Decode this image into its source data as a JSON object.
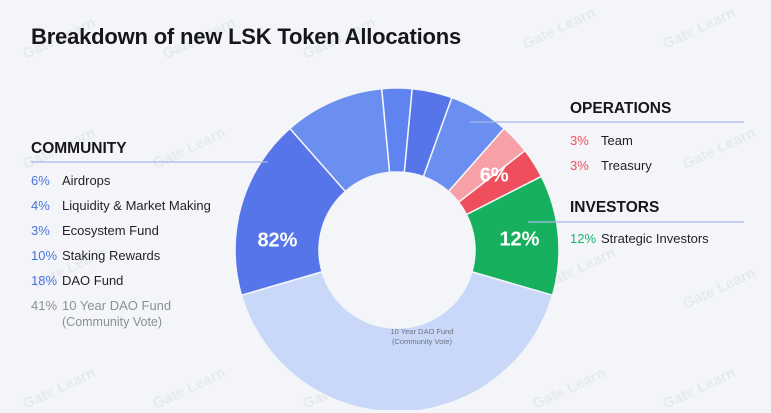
{
  "title": "Breakdown of new LSK Token Allocations",
  "watermark_text": "Gate Learn",
  "colors": {
    "community": "#5f84ef",
    "community_dark": "#5575e9",
    "community_mid": "#6a8ff0",
    "community_light": "#c9d8f8",
    "operations": "#ef4f5d",
    "operations_light": "#f7a0a8",
    "investors": "#17b05e",
    "leader_line": "#a9b8e5"
  },
  "chart_data": {
    "type": "pie",
    "donut": true,
    "title": "Breakdown of new LSK Token Allocations",
    "groups": [
      {
        "name": "COMMUNITY",
        "value": 82,
        "label": "82%"
      },
      {
        "name": "OPERATIONS",
        "value": 6,
        "label": "6%"
      },
      {
        "name": "INVESTORS",
        "value": 12,
        "label": "12%"
      }
    ],
    "slices": [
      {
        "group": "COMMUNITY",
        "name": "Airdrops",
        "value": 6
      },
      {
        "group": "COMMUNITY",
        "name": "Liquidity & Market Making",
        "value": 4
      },
      {
        "group": "COMMUNITY",
        "name": "Ecosystem Fund",
        "value": 3
      },
      {
        "group": "COMMUNITY",
        "name": "Staking Rewards",
        "value": 10
      },
      {
        "group": "COMMUNITY",
        "name": "DAO Fund",
        "value": 18
      },
      {
        "group": "COMMUNITY",
        "name": "10 Year DAO Fund (Community Vote)",
        "value": 41
      },
      {
        "group": "OPERATIONS",
        "name": "Team",
        "value": 3
      },
      {
        "group": "OPERATIONS",
        "name": "Treasury",
        "value": 3
      },
      {
        "group": "INVESTORS",
        "name": "Strategic Investors",
        "value": 12
      }
    ],
    "inner_label": [
      "10 Year DAO Fund",
      "(Community Vote)"
    ]
  },
  "legend": {
    "community": {
      "header": "COMMUNITY",
      "items": [
        {
          "pct": "6%",
          "label": "Airdrops"
        },
        {
          "pct": "4%",
          "label": "Liquidity & Market Making"
        },
        {
          "pct": "3%",
          "label": "Ecosystem Fund"
        },
        {
          "pct": "10%",
          "label": "Staking Rewards"
        },
        {
          "pct": "18%",
          "label": "DAO Fund"
        },
        {
          "pct": "41%",
          "label": "10 Year DAO Fund",
          "sub": "(Community Vote)"
        }
      ]
    },
    "operations": {
      "header": "OPERATIONS",
      "items": [
        {
          "pct": "3%",
          "label": "Team"
        },
        {
          "pct": "3%",
          "label": "Treasury"
        }
      ]
    },
    "investors": {
      "header": "INVESTORS",
      "items": [
        {
          "pct": "12%",
          "label": "Strategic Investors"
        }
      ]
    }
  }
}
